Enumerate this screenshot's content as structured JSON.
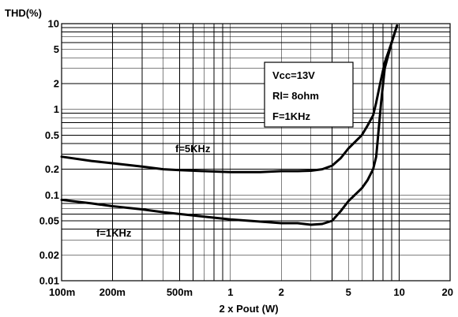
{
  "chart_data": {
    "type": "line",
    "ylabel": "THD(%)",
    "xlabel": "2 x Pout (W)",
    "xscale": "log",
    "yscale": "log",
    "xlim": [
      0.1,
      20
    ],
    "ylim": [
      0.01,
      10
    ],
    "grid": true,
    "x_ticks": [
      {
        "value": 0.1,
        "label": "100m"
      },
      {
        "value": 0.2,
        "label": "200m"
      },
      {
        "value": 0.5,
        "label": "500m"
      },
      {
        "value": 1,
        "label": "1"
      },
      {
        "value": 2,
        "label": "2"
      },
      {
        "value": 5,
        "label": "5"
      },
      {
        "value": 10,
        "label": "10"
      },
      {
        "value": 20,
        "label": "20"
      }
    ],
    "y_ticks": [
      {
        "value": 0.01,
        "label": "0.01"
      },
      {
        "value": 0.02,
        "label": "0.02"
      },
      {
        "value": 0.05,
        "label": "0.05"
      },
      {
        "value": 0.1,
        "label": "0.1"
      },
      {
        "value": 0.2,
        "label": "0.2"
      },
      {
        "value": 0.5,
        "label": "0.5"
      },
      {
        "value": 1,
        "label": "1"
      },
      {
        "value": 2,
        "label": "2"
      },
      {
        "value": 5,
        "label": "5"
      },
      {
        "value": 10,
        "label": "10"
      }
    ],
    "conditions": [
      "Vcc=13V",
      "Rl= 8ohm",
      "F=1KHz"
    ],
    "series": [
      {
        "name": "f=5KHz",
        "points": [
          [
            0.1,
            0.28
          ],
          [
            0.15,
            0.25
          ],
          [
            0.2,
            0.235
          ],
          [
            0.3,
            0.215
          ],
          [
            0.4,
            0.2
          ],
          [
            0.5,
            0.195
          ],
          [
            0.7,
            0.19
          ],
          [
            1.0,
            0.185
          ],
          [
            1.5,
            0.185
          ],
          [
            2.0,
            0.19
          ],
          [
            2.5,
            0.19
          ],
          [
            3.0,
            0.192
          ],
          [
            3.5,
            0.2
          ],
          [
            4.0,
            0.22
          ],
          [
            4.5,
            0.27
          ],
          [
            5.0,
            0.35
          ],
          [
            6.0,
            0.5
          ],
          [
            6.5,
            0.65
          ],
          [
            7.0,
            0.85
          ],
          [
            7.3,
            1.2
          ],
          [
            7.7,
            2.0
          ],
          [
            8.2,
            3.5
          ],
          [
            9.0,
            6.0
          ],
          [
            9.7,
            9.5
          ]
        ]
      },
      {
        "name": "f=1KHz",
        "points": [
          [
            0.1,
            0.088
          ],
          [
            0.15,
            0.08
          ],
          [
            0.2,
            0.074
          ],
          [
            0.3,
            0.068
          ],
          [
            0.4,
            0.063
          ],
          [
            0.5,
            0.06
          ],
          [
            0.7,
            0.056
          ],
          [
            1.0,
            0.052
          ],
          [
            1.5,
            0.049
          ],
          [
            2.0,
            0.047
          ],
          [
            2.5,
            0.047
          ],
          [
            3.0,
            0.045
          ],
          [
            3.5,
            0.046
          ],
          [
            4.0,
            0.05
          ],
          [
            4.5,
            0.065
          ],
          [
            5.0,
            0.085
          ],
          [
            6.0,
            0.12
          ],
          [
            6.5,
            0.15
          ],
          [
            7.0,
            0.2
          ],
          [
            7.3,
            0.28
          ],
          [
            7.5,
            0.5
          ],
          [
            7.8,
            1.2
          ],
          [
            8.2,
            3.0
          ],
          [
            9.0,
            6.0
          ],
          [
            9.7,
            9.5
          ]
        ]
      }
    ]
  }
}
